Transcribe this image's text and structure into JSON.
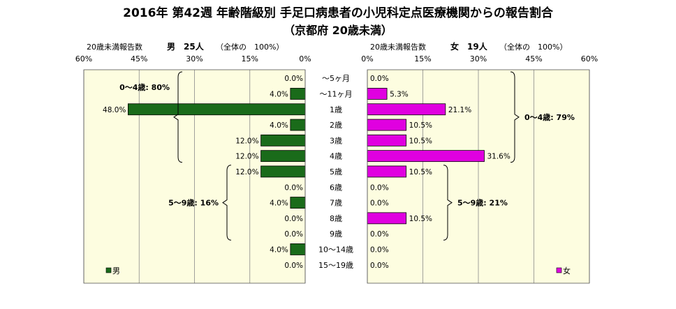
{
  "chart_data": {
    "type": "bar",
    "title": "2016年 第42週 年齢階級別 手足口病患者の小児科定点医療機関からの報告割合",
    "subtitle": "（京都府 20歳未満）",
    "categories": [
      "～5ヶ月",
      "～11ヶ月",
      "1歳",
      "2歳",
      "3歳",
      "4歳",
      "5歳",
      "6歳",
      "7歳",
      "8歳",
      "9歳",
      "10～14歳",
      "15～19歳"
    ],
    "panels": [
      {
        "side": "left",
        "header_label": "20歳未満報告数",
        "header_count": "男　25人",
        "header_total": "（全体の　100%）",
        "ticks": [
          "60%",
          "45%",
          "30%",
          "15%",
          "0%"
        ],
        "xlim": [
          0,
          60
        ],
        "direction": "reversed",
        "series": [
          {
            "name": "男",
            "color": "#1a6b1a",
            "values": [
              0.0,
              4.0,
              48.0,
              4.0,
              12.0,
              12.0,
              12.0,
              0.0,
              4.0,
              0.0,
              0.0,
              4.0,
              0.0
            ],
            "labels": [
              "0.0%",
              "4.0%",
              "48.0%",
              "4.0%",
              "12.0%",
              "12.0%",
              "12.0%",
              "0.0%",
              "4.0%",
              "0.0%",
              "0.0%",
              "4.0%",
              "0.0%"
            ]
          }
        ],
        "annotations": [
          {
            "text": "0～4歳: 80%",
            "from": 0,
            "to": 5
          },
          {
            "text": "5～9歳: 16%",
            "from": 6,
            "to": 10
          }
        ],
        "legend": "男",
        "legend_position": "bottom-left"
      },
      {
        "side": "right",
        "header_label": "20歳未満報告数",
        "header_count": "女　19人",
        "header_total": "（全体の　100%）",
        "ticks": [
          "0%",
          "15%",
          "30%",
          "45%",
          "60%"
        ],
        "xlim": [
          0,
          60
        ],
        "direction": "normal",
        "series": [
          {
            "name": "女",
            "color": "#e000e0",
            "values": [
              0.0,
              5.3,
              21.1,
              10.5,
              10.5,
              31.6,
              10.5,
              0.0,
              0.0,
              10.5,
              0.0,
              0.0,
              0.0
            ],
            "labels": [
              "0.0%",
              "5.3%",
              "21.1%",
              "10.5%",
              "10.5%",
              "31.6%",
              "10.5%",
              "0.0%",
              "0.0%",
              "10.5%",
              "0.0%",
              "0.0%",
              "0.0%"
            ]
          }
        ],
        "annotations": [
          {
            "text": "0～4歳: 79%",
            "from": 0,
            "to": 5
          },
          {
            "text": "5～9歳: 21%",
            "from": 6,
            "to": 10
          }
        ],
        "legend": "女",
        "legend_position": "bottom-right"
      }
    ],
    "grid": true,
    "plot_background": "#fdfde0"
  }
}
